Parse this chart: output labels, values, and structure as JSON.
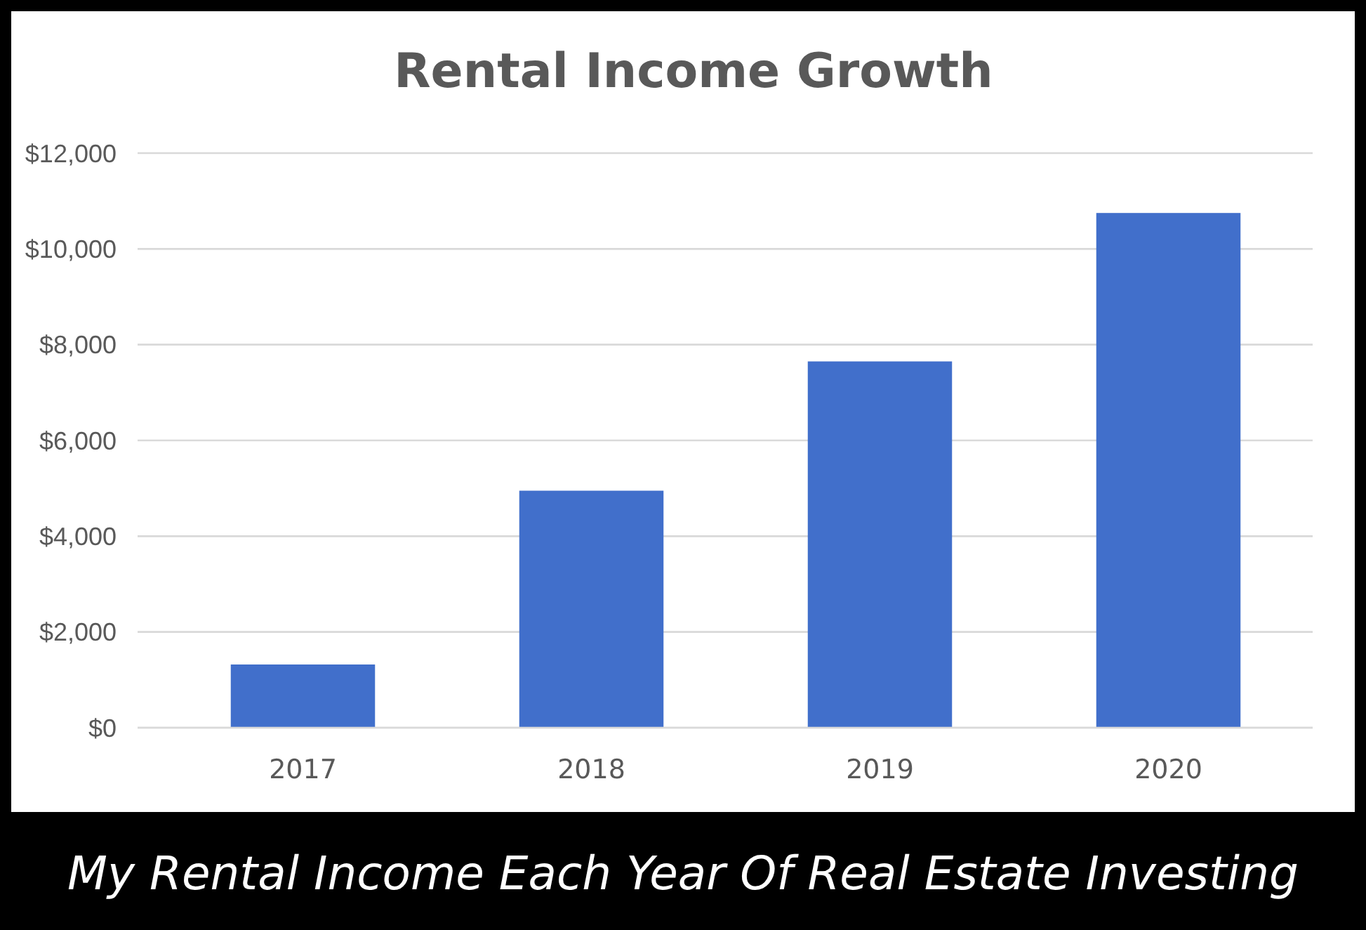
{
  "chart_data": {
    "type": "bar",
    "title": "Rental Income Growth",
    "categories": [
      "2017",
      "2018",
      "2019",
      "2020"
    ],
    "values": [
      1320,
      4950,
      7650,
      10750
    ],
    "color": "#416fcb",
    "ylim": [
      0,
      12000
    ],
    "yticks": [
      {
        "value": 0,
        "label": "$0"
      },
      {
        "value": 2000,
        "label": "$2,000"
      },
      {
        "value": 4000,
        "label": "$4,000"
      },
      {
        "value": 6000,
        "label": "$6,000"
      },
      {
        "value": 8000,
        "label": "$8,000"
      },
      {
        "value": 10000,
        "label": "$10,000"
      },
      {
        "value": 12000,
        "label": "$12,000"
      }
    ],
    "grid": "y",
    "annotations": [
      "My Rental Income Each Year Of Real Estate Investing"
    ]
  }
}
